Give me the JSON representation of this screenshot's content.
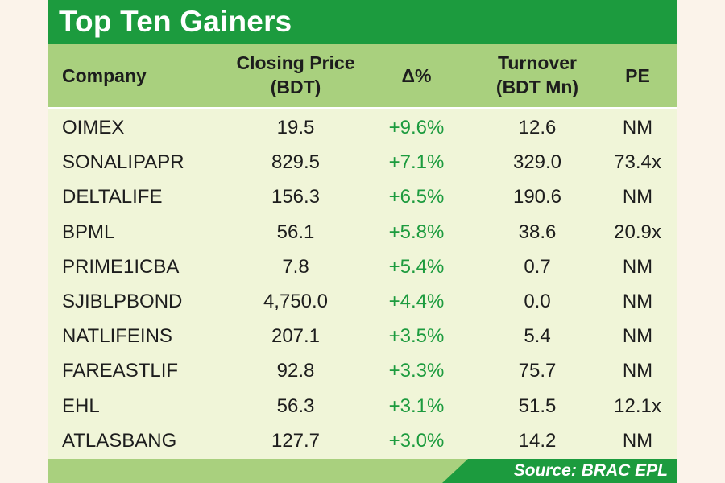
{
  "title": "Top Ten Gainers",
  "columns": {
    "company": "Company",
    "closing_price": [
      "Closing Price",
      "(BDT)"
    ],
    "change": "Δ%",
    "turnover": [
      "Turnover",
      "(BDT Mn)"
    ],
    "pe": "PE"
  },
  "source": "Source: BRAC EPL",
  "colors": {
    "title_bar": "#1c9b3e",
    "header_band": "#a9d07e",
    "body": "#f0f5d8",
    "positive_change": "#1c9b3e"
  },
  "chart_data": {
    "type": "table",
    "title": "Top Ten Gainers",
    "columns": [
      "Company",
      "Closing Price (BDT)",
      "Δ%",
      "Turnover (BDT Mn)",
      "PE"
    ],
    "rows": [
      {
        "company": "OIMEX",
        "price": "19.5",
        "change": "+9.6%",
        "turnover": "12.6",
        "pe": "NM"
      },
      {
        "company": "SONALIPAPR",
        "price": "829.5",
        "change": "+7.1%",
        "turnover": "329.0",
        "pe": "73.4x"
      },
      {
        "company": "DELTALIFE",
        "price": "156.3",
        "change": "+6.5%",
        "turnover": "190.6",
        "pe": "NM"
      },
      {
        "company": "BPML",
        "price": "56.1",
        "change": "+5.8%",
        "turnover": "38.6",
        "pe": "20.9x"
      },
      {
        "company": "PRIME1ICBA",
        "price": "7.8",
        "change": "+5.4%",
        "turnover": "0.7",
        "pe": "NM"
      },
      {
        "company": "SJIBLPBOND",
        "price": "4,750.0",
        "change": "+4.4%",
        "turnover": "0.0",
        "pe": "NM"
      },
      {
        "company": "NATLIFEINS",
        "price": "207.1",
        "change": "+3.5%",
        "turnover": "5.4",
        "pe": "NM"
      },
      {
        "company": "FAREASTLIF",
        "price": "92.8",
        "change": "+3.3%",
        "turnover": "75.7",
        "pe": "NM"
      },
      {
        "company": "EHL",
        "price": "56.3",
        "change": "+3.1%",
        "turnover": "51.5",
        "pe": "12.1x"
      },
      {
        "company": "ATLASBANG",
        "price": "127.7",
        "change": "+3.0%",
        "turnover": "14.2",
        "pe": "NM"
      }
    ]
  }
}
